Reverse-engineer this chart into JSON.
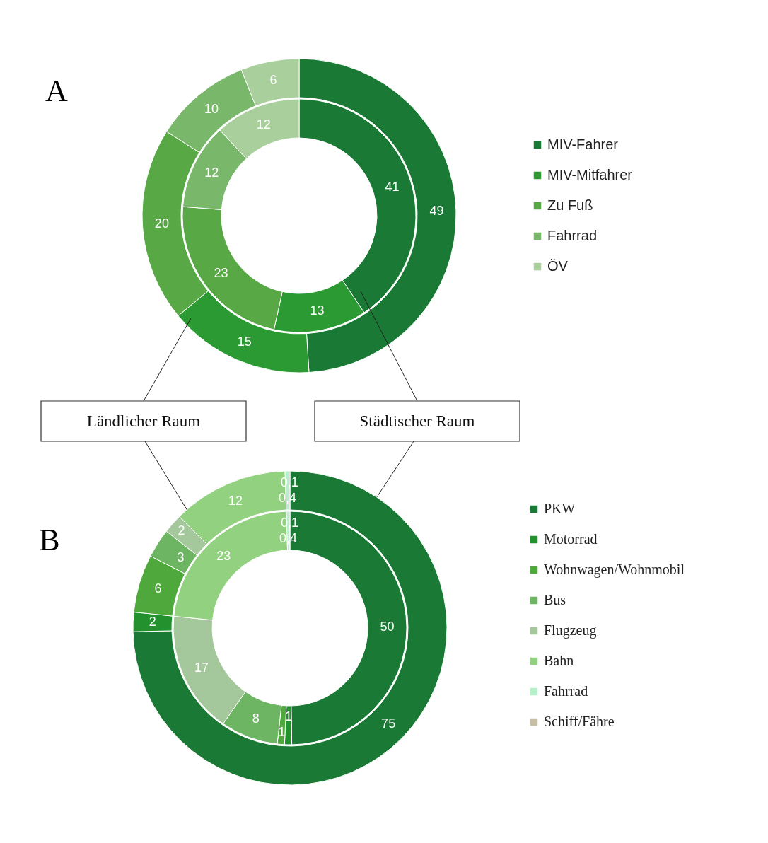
{
  "chart_data": [
    {
      "type": "donut",
      "title": "A",
      "legend": "right",
      "categories": [
        "MIV-Fahrer",
        "MIV-Mitfahrer",
        "Zu Fuß",
        "Fahrrad",
        "ÖV"
      ],
      "colors": [
        "#1a7a35",
        "#2b9a32",
        "#58a845",
        "#79b86a",
        "#a9cf9c"
      ],
      "series": [
        {
          "name": "Ländlicher Raum",
          "values": [
            49,
            15,
            20,
            10,
            6
          ],
          "value_labels": [
            "49",
            "15",
            "20",
            "10",
            "6"
          ]
        },
        {
          "name": "Städtischer Raum",
          "values": [
            41,
            13,
            23,
            12,
            12
          ],
          "value_labels": [
            "41",
            "13",
            "23",
            "12",
            "12"
          ]
        }
      ]
    },
    {
      "type": "donut",
      "title": "B",
      "legend": "right",
      "categories": [
        "PKW",
        "Motorrad",
        "Wohnwagen/Wohnmobil",
        "Bus",
        "Flugzeug",
        "Bahn",
        "Fahrrad",
        "Schiff/Fähre"
      ],
      "colors": [
        "#1a7a35",
        "#23922e",
        "#4ea83c",
        "#6db463",
        "#a5c79c",
        "#92d17f",
        "#b4f0c8",
        "#c6bfa5"
      ],
      "series": [
        {
          "values": [
            75,
            2,
            6,
            3,
            2,
            12,
            0.4,
            0.1
          ],
          "value_labels": [
            "75",
            "2",
            "6",
            "3",
            "2",
            "12",
            "0,4",
            "0,1"
          ]
        },
        {
          "values": [
            50,
            1,
            1,
            8,
            17,
            23,
            0.4,
            0.1
          ],
          "value_labels": [
            "50",
            "1",
            "1",
            "8",
            "17",
            "23",
            "0,4",
            "0,1"
          ]
        }
      ]
    }
  ]
}
